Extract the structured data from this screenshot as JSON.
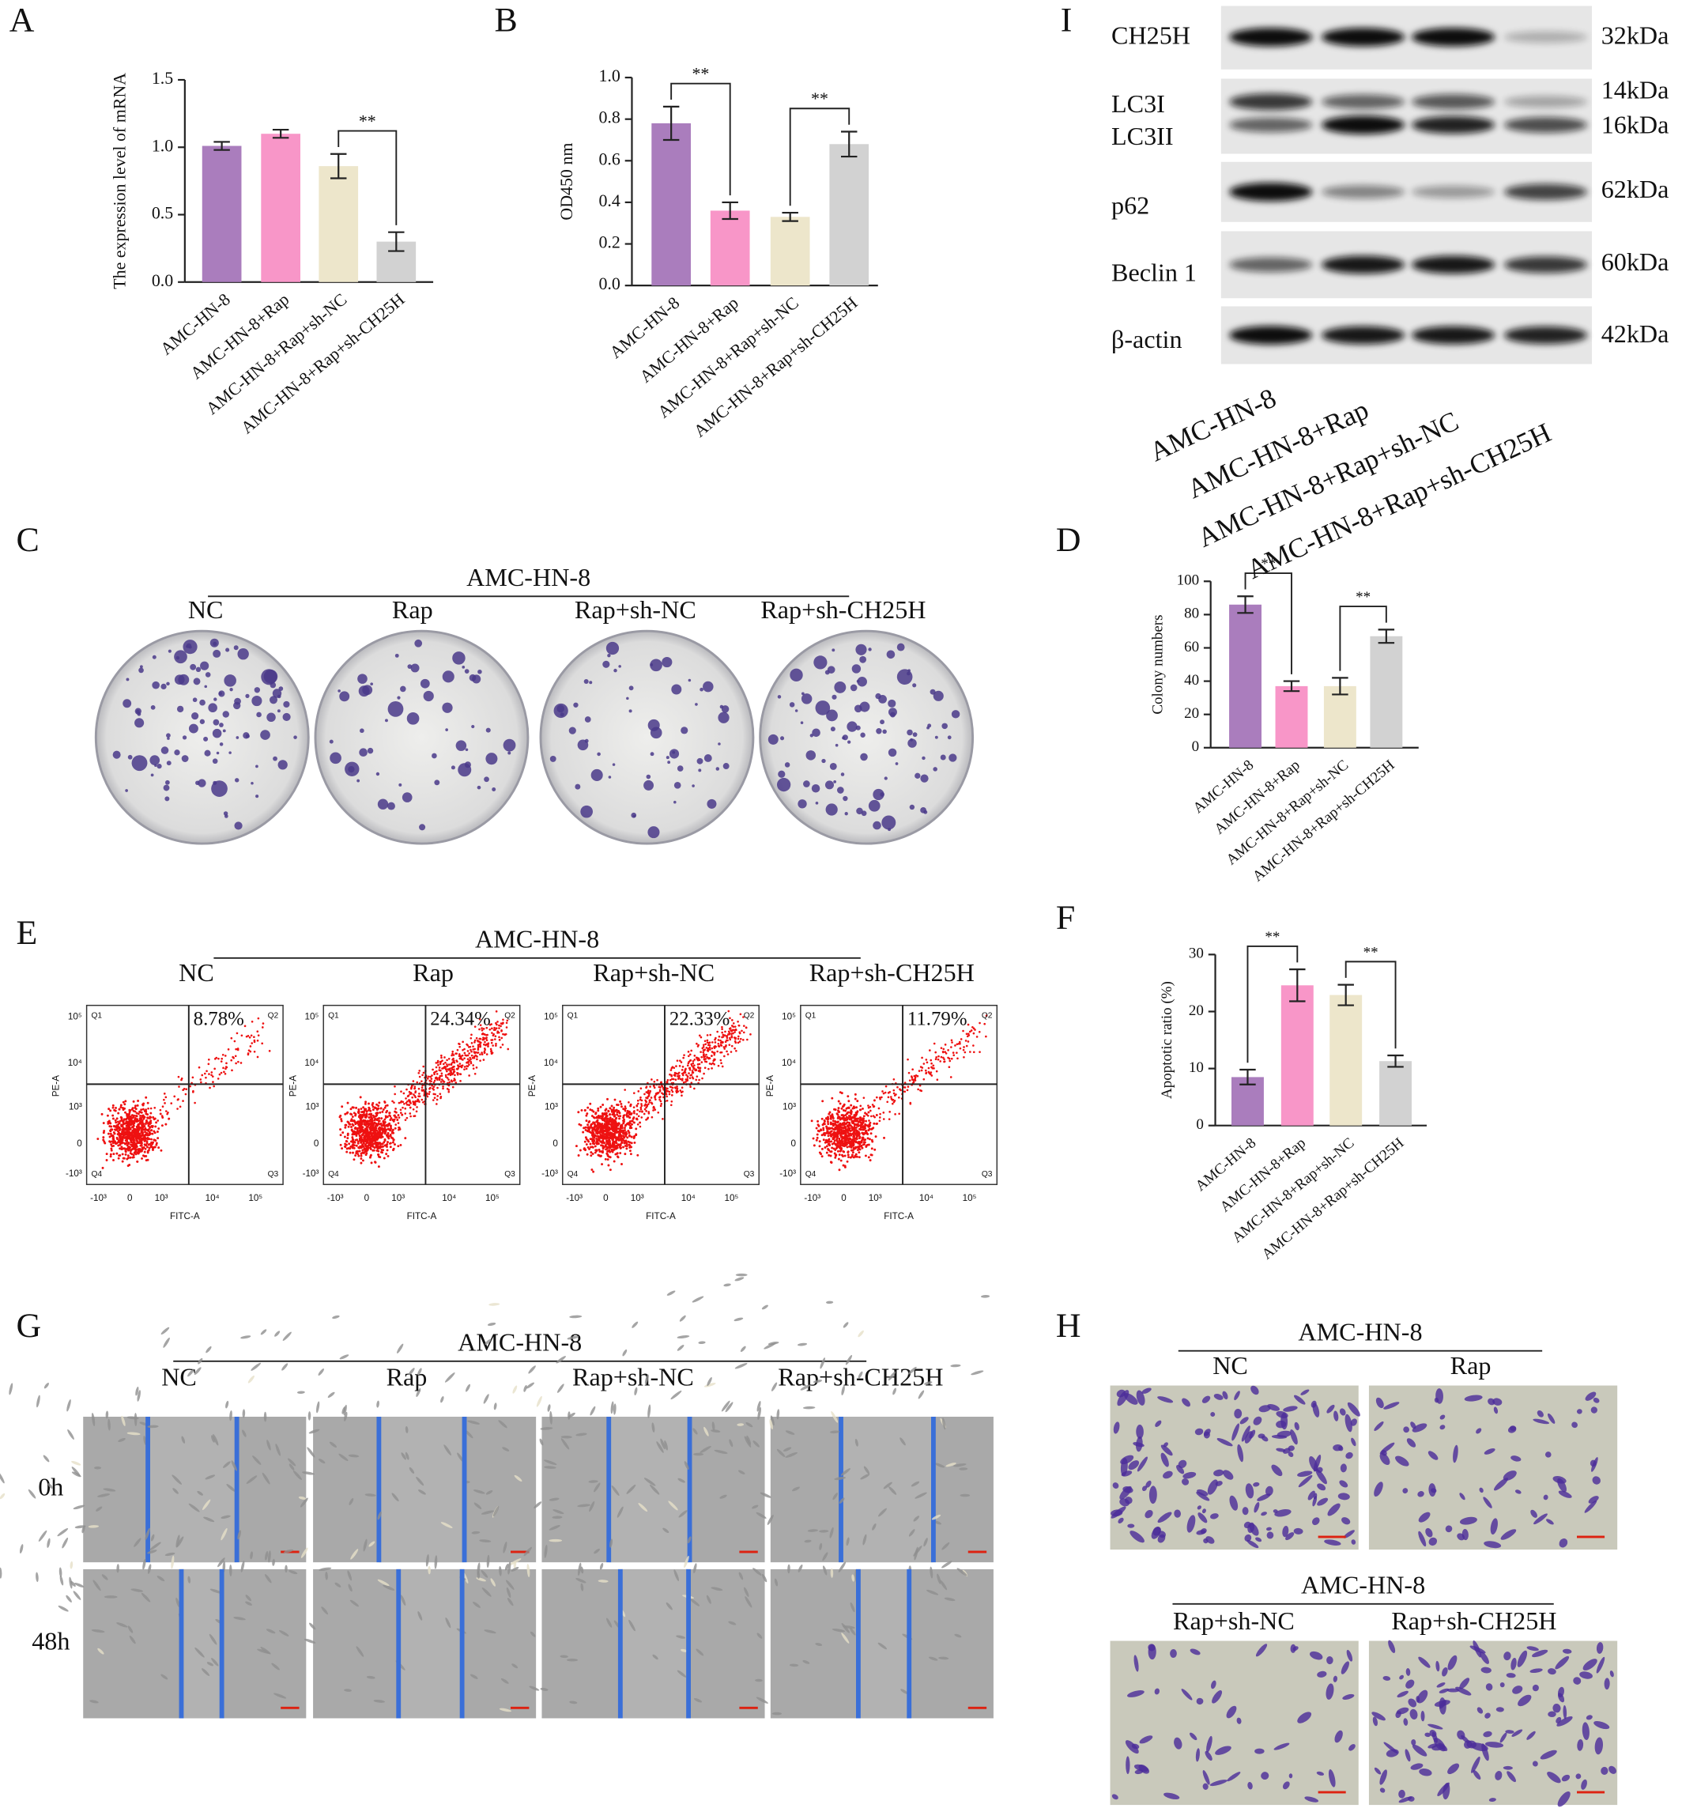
{
  "panel_labels": [
    "A",
    "B",
    "C",
    "D",
    "E",
    "F",
    "G",
    "H",
    "I"
  ],
  "chart_data": [
    {
      "type": "bar",
      "ylabel": "The expression level of mRNA",
      "categories": [
        "AMC-HN-8",
        "AMC-HN-8+Rap",
        "AMC-HN-8+Rap+sh-NC",
        "AMC-HN-8+Rap+sh-CH25H"
      ],
      "values": [
        1.01,
        1.1,
        0.86,
        0.3
      ],
      "errors": [
        0.03,
        0.03,
        0.09,
        0.07
      ],
      "colors": [
        "#aa7dbd",
        "#f896c8",
        "#ede6cb",
        "#d2d2d2"
      ],
      "ylim": [
        0,
        1.5
      ],
      "yticks": [
        {
          "value": 0,
          "label": "0.0"
        },
        0.5,
        {
          "value": 1,
          "label": "1.0"
        },
        1.5
      ],
      "significance": [
        {
          "groups": [
            2,
            3
          ],
          "label": "**"
        }
      ]
    },
    {
      "type": "bar",
      "ylabel": "OD450 nm",
      "categories": [
        "AMC-HN-8",
        "AMC-HN-8+Rap",
        "AMC-HN-8+Rap+sh-NC",
        "AMC-HN-8+Rap+sh-CH25H"
      ],
      "values": [
        0.78,
        0.36,
        0.33,
        0.68
      ],
      "errors": [
        0.08,
        0.04,
        0.02,
        0.06
      ],
      "colors": [
        "#aa7dbd",
        "#f896c8",
        "#ede6cb",
        "#d2d2d2"
      ],
      "ylim": [
        0,
        1
      ],
      "yticks": [
        {
          "value": 0,
          "label": "0.0"
        },
        0.2,
        0.4,
        0.6,
        0.8,
        {
          "value": 1,
          "label": "1.0"
        }
      ],
      "significance": [
        {
          "groups": [
            0,
            1
          ],
          "label": "**"
        },
        {
          "groups": [
            2,
            3
          ],
          "label": "**"
        }
      ]
    },
    {
      "type": "bar",
      "ylabel": "Colony numbers",
      "categories": [
        "AMC-HN-8",
        "AMC-HN-8+Rap",
        "AMC-HN-8+Rap+sh-NC",
        "AMC-HN-8+Rap+sh-CH25H"
      ],
      "values": [
        86,
        37,
        37,
        67
      ],
      "errors": [
        5,
        3,
        5,
        4
      ],
      "colors": [
        "#aa7dbd",
        "#f896c8",
        "#ede6cb",
        "#d2d2d2"
      ],
      "ylim": [
        0,
        100
      ],
      "yticks": [
        0,
        20,
        40,
        60,
        80,
        100
      ],
      "significance": [
        {
          "groups": [
            0,
            1
          ],
          "label": "**"
        },
        {
          "groups": [
            2,
            3
          ],
          "label": "**"
        }
      ]
    },
    {
      "type": "bar",
      "ylabel": "Apoptotic ratio (%)",
      "categories": [
        "AMC-HN-8",
        "AMC-HN-8+Rap",
        "AMC-HN-8+Rap+sh-NC",
        "AMC-HN-8+Rap+sh-CH25H"
      ],
      "values": [
        8.5,
        24.6,
        22.9,
        11.3
      ],
      "errors": [
        1.3,
        2.8,
        1.8,
        1.0
      ],
      "colors": [
        "#aa7dbd",
        "#f896c8",
        "#ede6cb",
        "#d2d2d2"
      ],
      "ylim": [
        0,
        30
      ],
      "yticks": [
        0,
        10,
        20,
        30
      ],
      "significance": [
        {
          "groups": [
            0,
            1
          ],
          "label": "**"
        },
        {
          "groups": [
            2,
            3
          ],
          "label": "**"
        }
      ]
    }
  ],
  "colony": {
    "title": "AMC-HN-8",
    "groups": [
      "NC",
      "Rap",
      "Rap+sh-NC",
      "Rap+sh-CH25H"
    ]
  },
  "flow": {
    "title": "AMC-HN-8",
    "groups": [
      "NC",
      "Rap",
      "Rap+sh-NC",
      "Rap+sh-CH25H"
    ],
    "percentages": [
      "8.78%",
      "24.34%",
      "22.33%",
      "11.79%"
    ],
    "quadrants": [
      "Q1",
      "Q2",
      "Q3",
      "Q4"
    ],
    "x_label": "FITC-A",
    "y_label": "PE-A",
    "xticks": [
      "-10³",
      "0",
      "10³",
      "10⁴",
      "10⁵"
    ],
    "yticks": [
      "10⁵",
      "10⁴",
      "10³",
      "0",
      "-10³"
    ]
  },
  "wound": {
    "title": "AMC-HN-8",
    "groups": [
      "NC",
      "Rap",
      "Rap+sh-NC",
      "Rap+sh-CH25H"
    ],
    "times": [
      "0h",
      "48h"
    ]
  },
  "transwell": {
    "title": "AMC-HN-8",
    "groups": [
      "NC",
      "Rap",
      "Rap+sh-NC",
      "Rap+sh-CH25H"
    ]
  },
  "western": {
    "proteins": [
      "CH25H",
      "LC3I",
      "LC3II",
      "p62",
      "Beclin 1",
      "β-actin"
    ],
    "sizes": [
      "32kDa",
      "14kDa",
      "16kDa",
      "62kDa",
      "60kDa",
      "42kDa"
    ],
    "lanes": [
      "AMC-HN-8",
      "AMC-HN-8+Rap",
      "AMC-HN-8+Rap+sh-NC",
      "AMC-HN-8+Rap+sh-CH25H"
    ]
  }
}
